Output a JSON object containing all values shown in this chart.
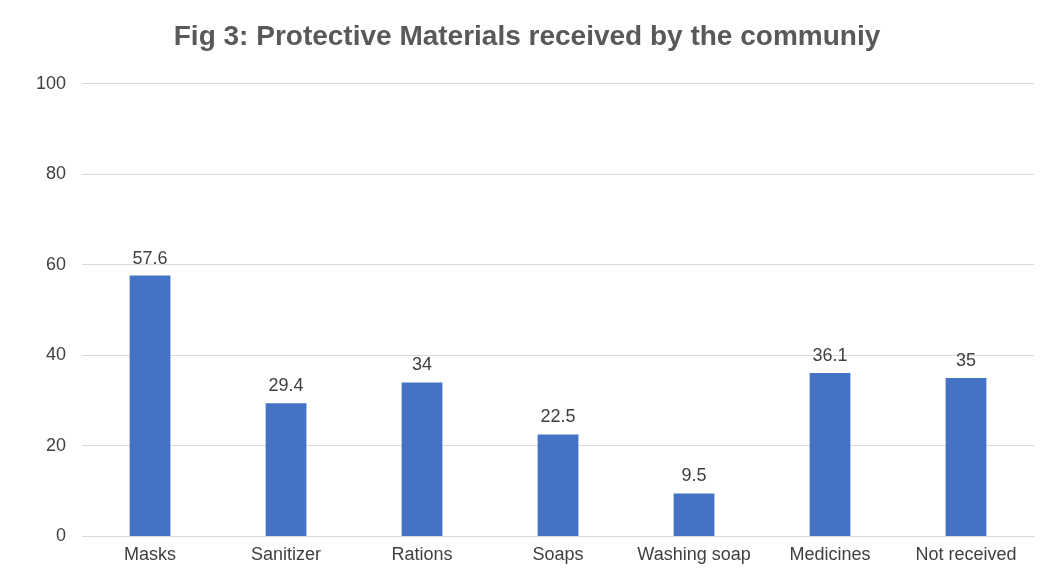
{
  "chart_data": {
    "type": "bar",
    "title": "Fig 3: Protective Materials received by the communiy",
    "categories": [
      "Masks",
      "Sanitizer",
      "Rations",
      "Soaps",
      "Washing soap",
      "Medicines",
      "Not received"
    ],
    "values": [
      57.6,
      29.4,
      34,
      22.5,
      9.5,
      36.1,
      35
    ],
    "color": "#4472c4",
    "ylim": [
      0,
      100
    ],
    "yticks": [
      0,
      20,
      40,
      60,
      80,
      100
    ],
    "grid": "y",
    "data_labels": true
  }
}
